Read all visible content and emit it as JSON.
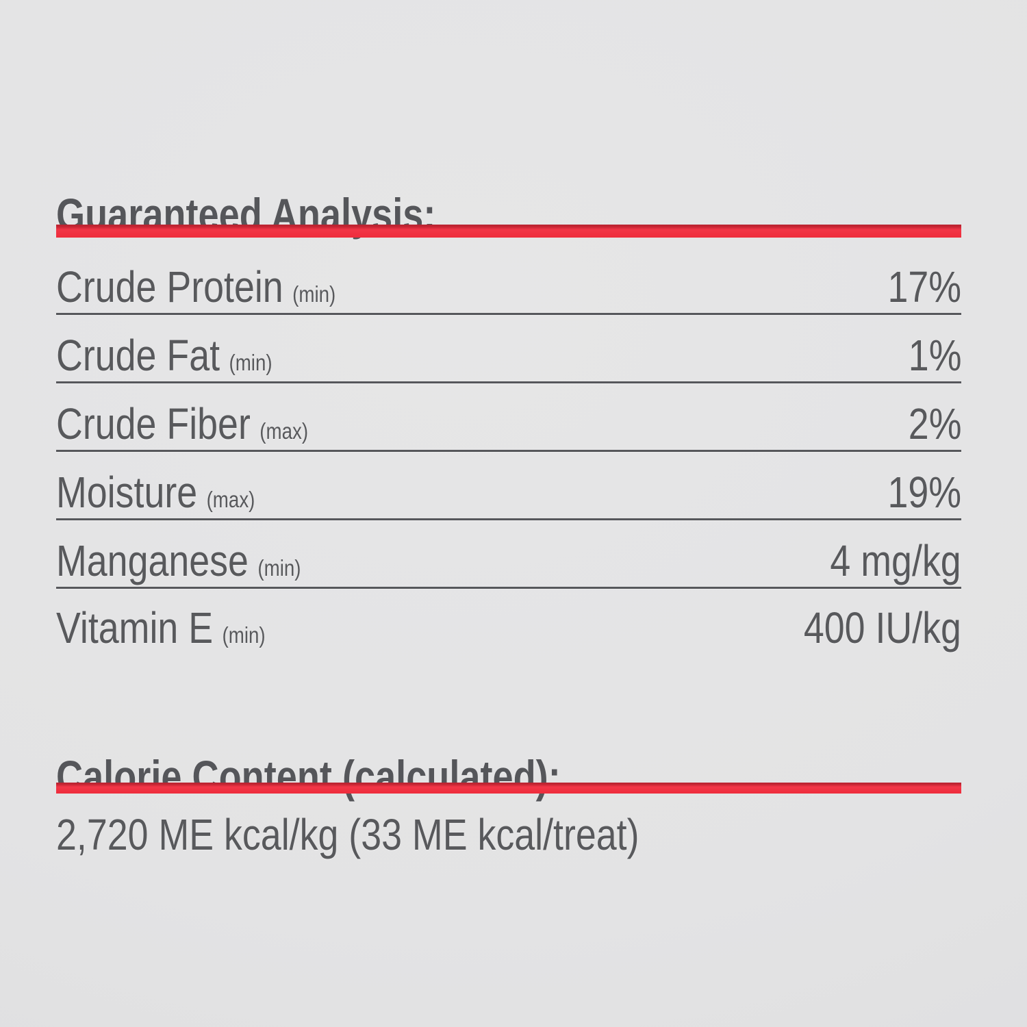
{
  "colors": {
    "background": "#e3e3e4",
    "text": "#58595c",
    "heading": "#55565a",
    "accent_red": "#ee2d3c",
    "separator": "#56575b"
  },
  "guaranteed_analysis": {
    "title": "Guaranteed Analysis:",
    "rows": [
      {
        "label": "Crude Protein",
        "qualifier": "(min)",
        "value": "17%"
      },
      {
        "label": "Crude Fat",
        "qualifier": "(min)",
        "value": "1%"
      },
      {
        "label": "Crude Fiber",
        "qualifier": "(max)",
        "value": "2%"
      },
      {
        "label": "Moisture",
        "qualifier": "(max)",
        "value": "19%"
      },
      {
        "label": "Manganese",
        "qualifier": "(min)",
        "value": "4 mg/kg"
      },
      {
        "label": "Vitamin E",
        "qualifier": "(min)",
        "value": "400 IU/kg"
      }
    ]
  },
  "calorie_content": {
    "title": "Calorie Content (calculated):",
    "value": "2,720 ME kcal/kg (33 ME kcal/treat)"
  }
}
